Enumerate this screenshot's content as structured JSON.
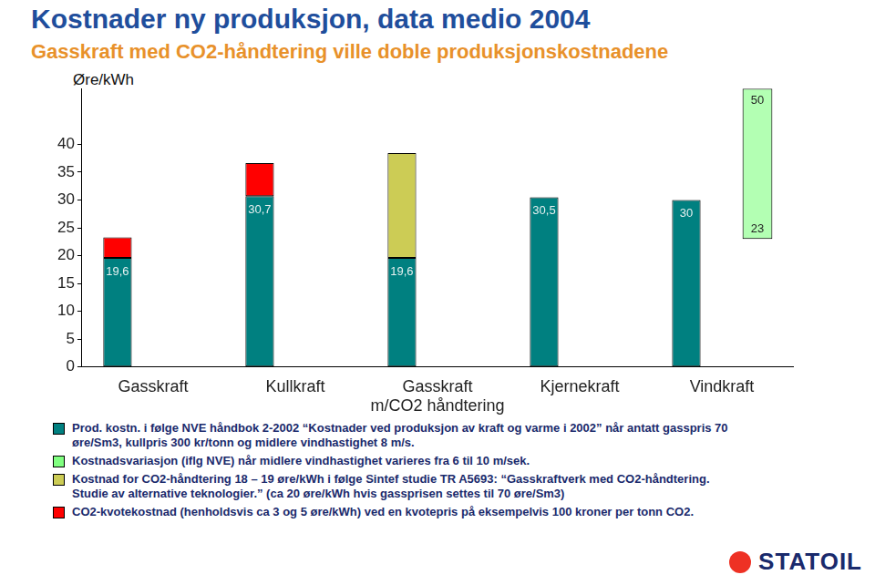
{
  "chart_data": {
    "type": "bar",
    "title": "Kostnader ny produksjon, data medio 2004",
    "subtitle": "Gasskraft med CO2-håndtering ville doble produksjonskostnadene",
    "ylabel": "Øre/kWh",
    "categories": [
      "Gasskraft",
      "Kullkraft",
      "Gasskraft\nm/CO2 håndtering",
      "Kjernekraft",
      "Vindkraft"
    ],
    "stacked": true,
    "grid": false,
    "legend": "bottom",
    "ylim": [
      0,
      50
    ],
    "yticks": [
      0,
      5,
      10,
      15,
      20,
      25,
      30,
      35,
      40
    ],
    "series": [
      {
        "name": "Prod. kostn. i følge NVE håndbok 2-2002 “Kostnader ved produksjon av kraft og varme i 2002” når antatt gasspris 70 øre/Sm3, kullpris 300 kr/tonn og midlere vindhastighet 8 m/s.",
        "color": "#008080",
        "values": [
          19.6,
          30.7,
          19.6,
          30.5,
          30
        ],
        "data_labels": true,
        "value_labels": [
          "19,6",
          "30,7",
          "19,6",
          "30,5",
          "30"
        ]
      },
      {
        "name": "Kostnadsvariasjon (iflg NVE) når midlere vindhastighet varieres fra 6 til 10 m/sek.",
        "color": "#80ff80",
        "values": [
          null,
          null,
          null,
          null,
          [
            23,
            50
          ]
        ],
        "data_labels": true
      },
      {
        "name": "Kostnad for CO2-håndtering 18 – 19 øre/kWh i følge Sintef studie TR A5693: “Gasskraftverk med CO2-håndtering. Studie av alternative teknologier.” (ca 20 øre/kWh hvis gassprisen settes til 70 øre/Sm3)",
        "color": "#cccc55",
        "values": [
          null,
          null,
          18.8,
          null,
          null
        ]
      },
      {
        "name": "CO2-kvotekostnad (henholdsvis ca 3 og 5 øre/kWh) ved en kvotepris på eksempelvis 100 kroner per tonn CO2.",
        "color": "#ff0000",
        "values": [
          3.7,
          5.9,
          null,
          null,
          null
        ]
      }
    ]
  },
  "logo": "STATOIL"
}
